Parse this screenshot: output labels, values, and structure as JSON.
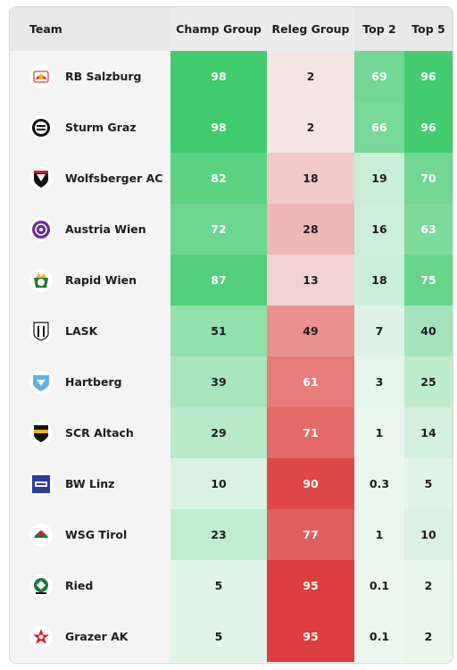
{
  "headers": {
    "team": "Team",
    "champ": "Champ Group",
    "releg": "Releg Group",
    "top2": "Top 2",
    "top5": "Top 5"
  },
  "colors": {
    "green_strong": "#3dca6b",
    "red_strong": "#dc3535",
    "neutral_light": "#eaf6ee"
  },
  "rows": [
    {
      "team": "RB Salzburg",
      "logo": "red-bull-icon",
      "champ": "98",
      "releg": "2",
      "top2": "69",
      "top5": "96",
      "c": [
        0.98,
        0.02,
        0.69,
        0.96
      ]
    },
    {
      "team": "Sturm Graz",
      "logo": "sturm-graz-icon",
      "champ": "98",
      "releg": "2",
      "top2": "66",
      "top5": "96",
      "c": [
        0.98,
        0.02,
        0.66,
        0.96
      ]
    },
    {
      "team": "Wolfsberger AC",
      "logo": "wolf-shield-icon",
      "champ": "82",
      "releg": "18",
      "top2": "19",
      "top5": "70",
      "c": [
        0.82,
        0.18,
        0.19,
        0.7
      ]
    },
    {
      "team": "Austria Wien",
      "logo": "austria-wien-icon",
      "champ": "72",
      "releg": "28",
      "top2": "16",
      "top5": "63",
      "c": [
        0.72,
        0.28,
        0.16,
        0.63
      ]
    },
    {
      "team": "Rapid Wien",
      "logo": "rapid-crest-icon",
      "champ": "87",
      "releg": "13",
      "top2": "18",
      "top5": "75",
      "c": [
        0.87,
        0.13,
        0.18,
        0.75
      ]
    },
    {
      "team": "LASK",
      "logo": "lask-shield-icon",
      "champ": "51",
      "releg": "49",
      "top2": "7",
      "top5": "40",
      "c": [
        0.51,
        0.49,
        0.07,
        0.4
      ]
    },
    {
      "team": "Hartberg",
      "logo": "hartberg-shield-icon",
      "champ": "39",
      "releg": "61",
      "top2": "3",
      "top5": "25",
      "c": [
        0.39,
        0.61,
        0.03,
        0.25
      ]
    },
    {
      "team": "SCR Altach",
      "logo": "altach-shield-icon",
      "champ": "29",
      "releg": "71",
      "top2": "1",
      "top5": "14",
      "c": [
        0.29,
        0.71,
        0.01,
        0.14
      ]
    },
    {
      "team": "BW Linz",
      "logo": "bw-linz-icon",
      "champ": "10",
      "releg": "90",
      "top2": "0.3",
      "top5": "5",
      "c": [
        0.1,
        0.9,
        0.003,
        0.05
      ]
    },
    {
      "team": "WSG Tirol",
      "logo": "wsg-tirol-icon",
      "champ": "23",
      "releg": "77",
      "top2": "1",
      "top5": "10",
      "c": [
        0.23,
        0.77,
        0.01,
        0.1
      ]
    },
    {
      "team": "Ried",
      "logo": "ried-icon",
      "champ": "5",
      "releg": "95",
      "top2": "0.1",
      "top5": "2",
      "c": [
        0.05,
        0.95,
        0.001,
        0.02
      ]
    },
    {
      "team": "Grazer AK",
      "logo": "grazer-ak-icon",
      "champ": "5",
      "releg": "95",
      "top2": "0.1",
      "top5": "2",
      "c": [
        0.05,
        0.95,
        0.001,
        0.02
      ]
    }
  ]
}
